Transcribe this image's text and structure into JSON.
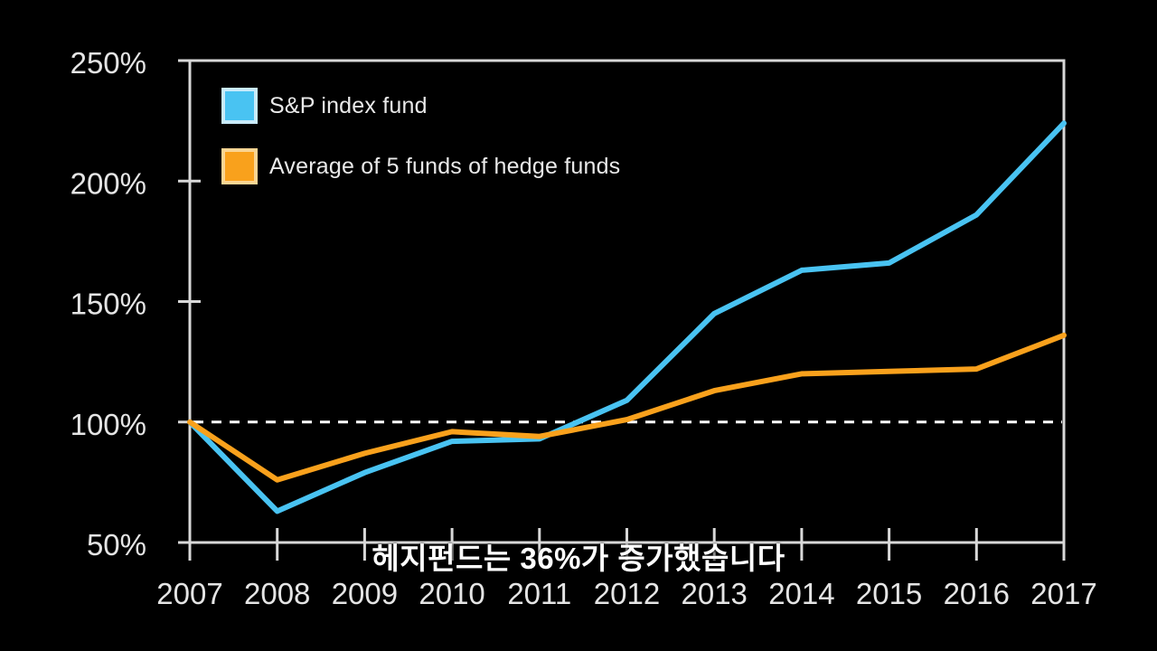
{
  "app": {
    "background_color": "#000000"
  },
  "chart_data": {
    "type": "line",
    "title": "",
    "subtitle": "헤지펀드는 36%가 증가했습니다",
    "x": [
      2007,
      2008,
      2009,
      2010,
      2011,
      2012,
      2013,
      2014,
      2015,
      2016,
      2017
    ],
    "series": [
      {
        "name": "S&P index fund",
        "color": "#49C3F2",
        "legend_swatch_border": "#C9EBFB",
        "values": [
          100,
          63,
          79,
          92,
          93,
          109,
          145,
          163,
          166,
          186,
          224
        ]
      },
      {
        "name": "Average of 5 funds of hedge funds",
        "color": "#F9A11C",
        "legend_swatch_border": "#FBD593",
        "values": [
          100,
          76,
          87,
          96,
          94,
          101,
          113,
          120,
          121,
          122,
          136
        ]
      }
    ],
    "xlabel": "",
    "ylabel": "",
    "ylim": [
      50,
      250
    ],
    "yticks": [
      50,
      100,
      150,
      200,
      250
    ],
    "ytick_suffix": "%",
    "reference_line": {
      "value": 100,
      "style": "dashed",
      "color": "#FFFFFF"
    },
    "grid": false,
    "legend_position": "top-left-inside",
    "axis_color": "#D8D8D8",
    "label_color": "#E5E5E5"
  }
}
